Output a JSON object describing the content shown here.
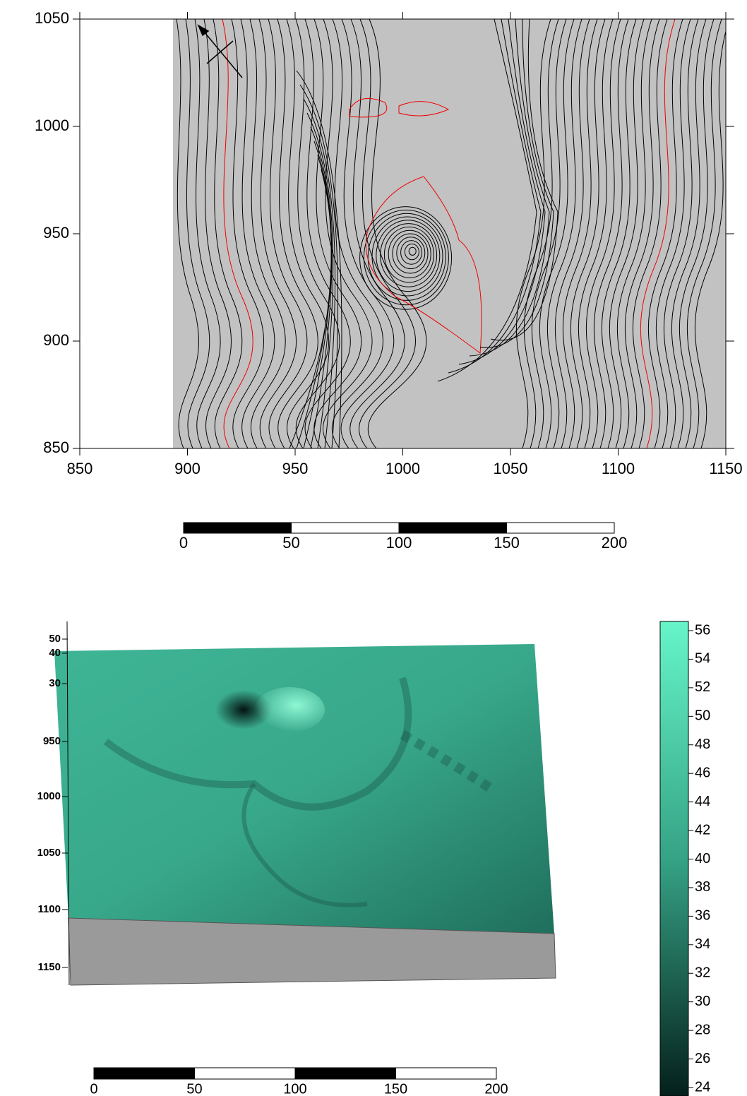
{
  "contour_map": {
    "xticks": [
      850,
      900,
      950,
      1000,
      1050,
      1100,
      1150
    ],
    "yticks": [
      850,
      900,
      950,
      1000,
      1050
    ]
  },
  "scale_bars": [
    {
      "ticks": [
        0,
        50,
        100,
        150,
        200
      ]
    },
    {
      "ticks": [
        0,
        50,
        100,
        150,
        200
      ]
    }
  ],
  "surface_3d": {
    "axis_labels": [
      "50",
      "40",
      "30",
      "950",
      "1000",
      "1050",
      "1100",
      "1150"
    ]
  },
  "colorbar": {
    "ticks": [
      56,
      54,
      52,
      50,
      48,
      46,
      44,
      42,
      40,
      38,
      36,
      34,
      32,
      30,
      28,
      26,
      24
    ]
  }
}
